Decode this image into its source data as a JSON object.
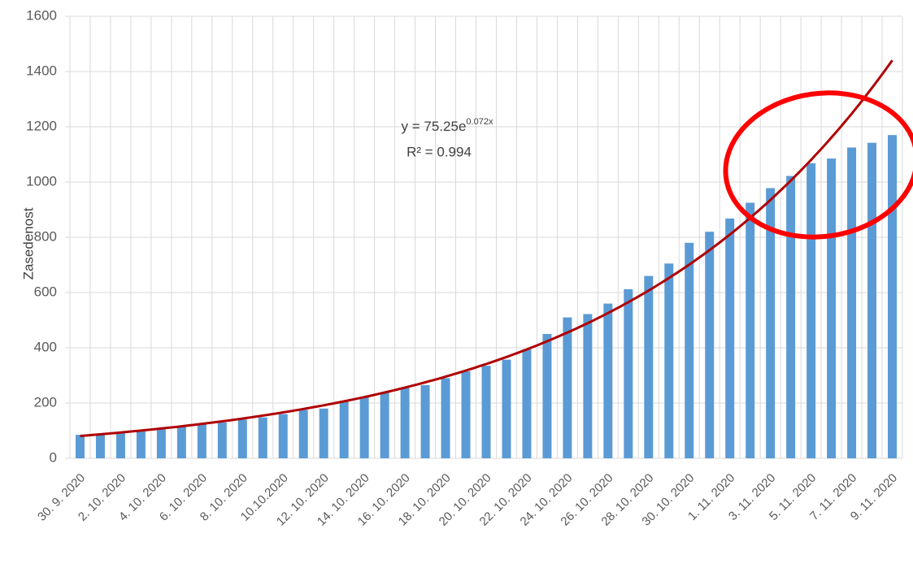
{
  "chart_data": {
    "type": "bar",
    "y_label": "Zasedenost",
    "categories": [
      "30. 9. 2020",
      null,
      "2. 10. 2020",
      null,
      "4. 10. 2020",
      null,
      "6. 10. 2020",
      null,
      "8. 10. 2020",
      null,
      "10.10.2020",
      null,
      "12. 10. 2020",
      null,
      "14. 10. 2020",
      null,
      "16. 10. 2020",
      null,
      "18. 10. 2020",
      null,
      "20. 10. 2020",
      null,
      "22. 10. 2020",
      null,
      "24. 10. 2020",
      null,
      "26. 10. 2020",
      null,
      "28. 10. 2020",
      null,
      "30. 10. 2020",
      null,
      "1. 11. 2020",
      null,
      "3. 11. 2020",
      null,
      "5. 11. 2020",
      null,
      "7. 11. 2020",
      null,
      "9. 11. 2020"
    ],
    "values": [
      85,
      85,
      90,
      97,
      107,
      115,
      122,
      130,
      140,
      148,
      160,
      175,
      180,
      205,
      220,
      240,
      255,
      265,
      290,
      315,
      335,
      357,
      395,
      450,
      510,
      522,
      560,
      612,
      660,
      705,
      780,
      820,
      868,
      925,
      978,
      1022,
      1068,
      1085,
      1125,
      1142,
      1170
    ],
    "color": "#5b9bd5",
    "ylim": [
      0,
      1600
    ],
    "yticks": [
      0,
      200,
      400,
      600,
      800,
      1000,
      1200,
      1400,
      1600
    ],
    "grid": true,
    "trendline": {
      "a": 75.25,
      "b": 0.072,
      "color": "#b00000"
    },
    "trend_equation": "y = 75.25e",
    "trend_exponent": "0.072x",
    "trend_r2": "R² = 0.994"
  }
}
